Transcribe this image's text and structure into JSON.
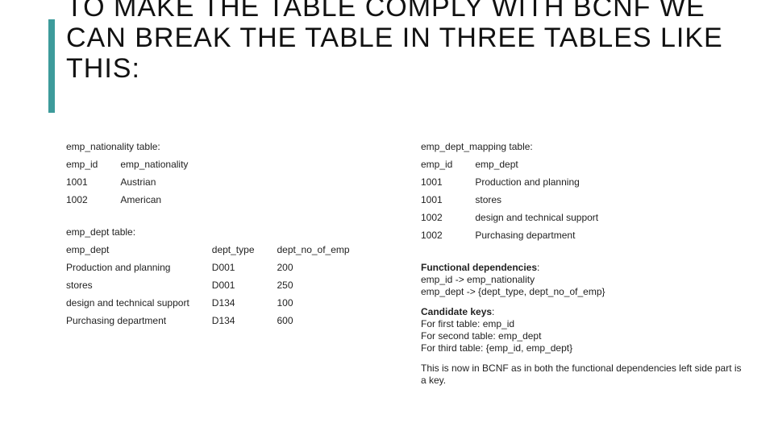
{
  "title": "TO MAKE THE TABLE COMPLY WITH BCNF WE CAN BREAK THE TABLE IN THREE TABLES LIKE THIS:",
  "accent_color": "#3d9b9b",
  "tables": {
    "nat": {
      "label": "emp_nationality table:",
      "columns": [
        "emp_id",
        "emp_nationality"
      ],
      "rows": [
        [
          "1001",
          "Austrian"
        ],
        [
          "1002",
          "American"
        ]
      ]
    },
    "dept": {
      "label": "emp_dept table:",
      "columns": [
        "emp_dept",
        "dept_type",
        "dept_no_of_emp"
      ],
      "rows": [
        [
          "Production and planning",
          "D001",
          "200"
        ],
        [
          "stores",
          "D001",
          "250"
        ],
        [
          "design and technical support",
          "D134",
          "100"
        ],
        [
          "Purchasing department",
          "D134",
          "600"
        ]
      ]
    },
    "map": {
      "label": "emp_dept_mapping table:",
      "columns": [
        "emp_id",
        "emp_dept"
      ],
      "rows": [
        [
          "1001",
          "Production and planning"
        ],
        [
          "1001",
          "stores"
        ],
        [
          "1002",
          "design and technical support"
        ],
        [
          "1002",
          "Purchasing department"
        ]
      ]
    }
  },
  "notes": {
    "fd_head": "Functional dependencies",
    "fd1": "emp_id -> emp_nationality",
    "fd2": "emp_dept -> {dept_type, dept_no_of_emp}",
    "ck_head": "Candidate keys",
    "ck1": "For first table: emp_id",
    "ck2": "For second table: emp_dept",
    "ck3": "For third table: {emp_id, emp_dept}",
    "final": "This is now in BCNF as in both the functional dependencies left side part is a key."
  }
}
